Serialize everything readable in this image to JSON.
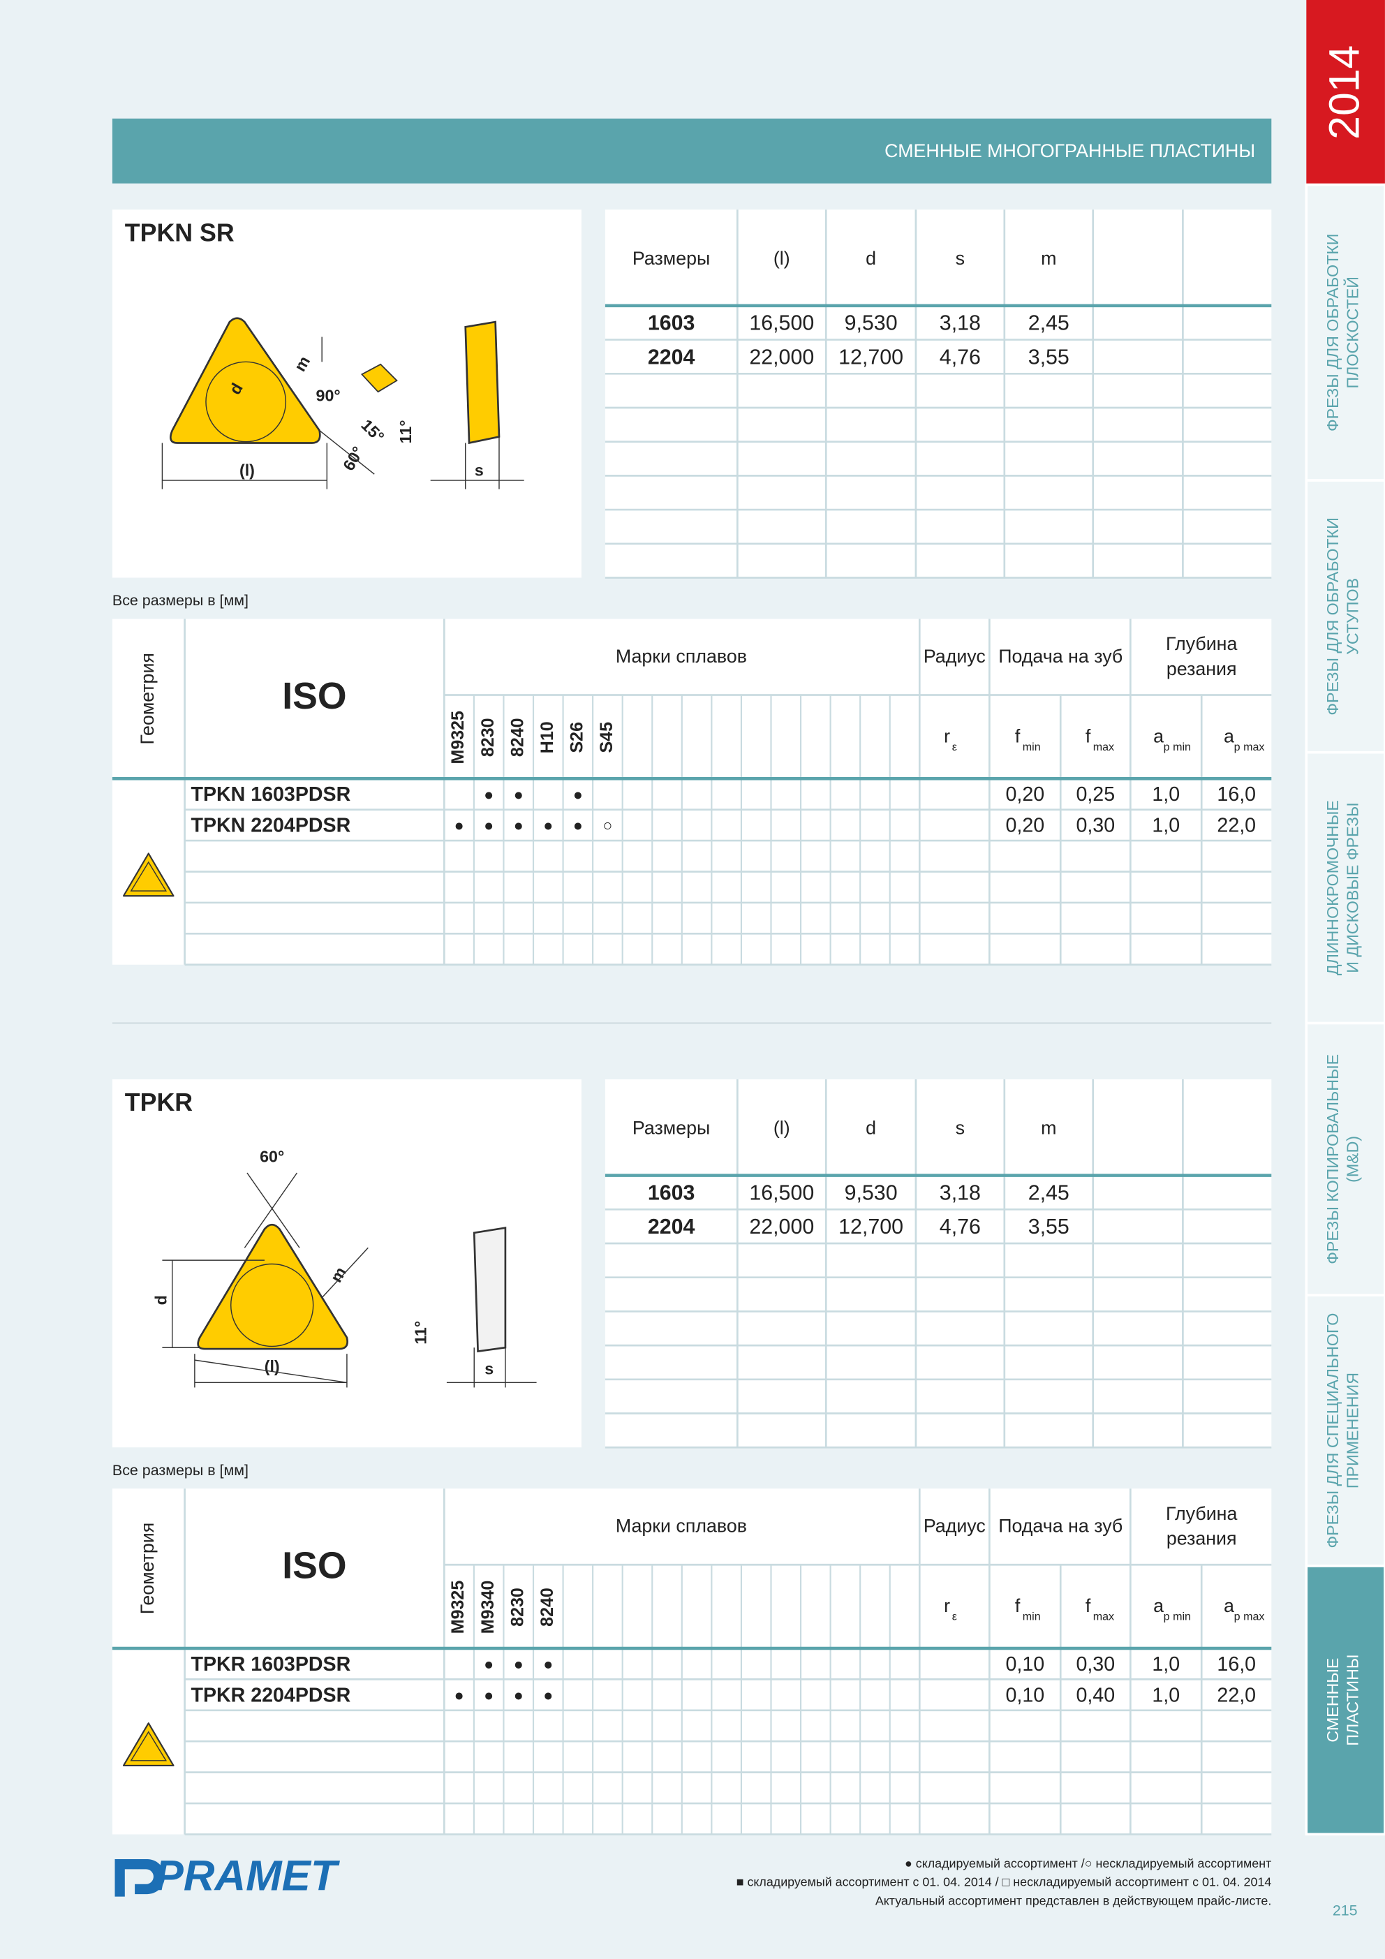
{
  "header": {
    "title": "СМЕННЫЕ МНОГОГРАННЫЕ ПЛАСТИНЫ",
    "year": "2014"
  },
  "sidebar": {
    "tabs": [
      {
        "lines": [
          "ФРЕЗЫ ДЛЯ ОБРАБОТКИ",
          "ПЛОСКОСТЕЙ"
        ]
      },
      {
        "lines": [
          "ФРЕЗЫ ДЛЯ ОБРАБОТКИ",
          "УСТУПОВ"
        ]
      },
      {
        "lines": [
          "ДЛИННОКРОМОЧНЫЕ",
          "И ДИСКОВЫЕ ФРЕЗЫ"
        ]
      },
      {
        "lines": [
          "ФРЕЗЫ КОПИРОВАЛЬНЫЕ",
          "(M&D)"
        ]
      },
      {
        "lines": [
          "ФРЕЗЫ ДЛЯ СПЕЦИАЛЬНОГО",
          "ПРИМЕНЕНИЯ"
        ]
      },
      {
        "lines": [
          "СМЕННЫЕ",
          "ПЛАСТИНЫ"
        ]
      }
    ]
  },
  "sections": [
    {
      "name": "TPKN SR",
      "diagram_labels": [
        "d",
        "m",
        "90°",
        "15°",
        "60°",
        "11°",
        "(l)",
        "s"
      ],
      "dimensions": {
        "headers": [
          "Размеры",
          "(l)",
          "d",
          "s",
          "m"
        ],
        "rows": [
          [
            "1603",
            "16,500",
            "9,530",
            "3,18",
            "2,45"
          ],
          [
            "2204",
            "22,000",
            "12,700",
            "4,76",
            "3,55"
          ]
        ]
      },
      "note": "Все размеры в [мм]",
      "grades_table": {
        "geometry_label": "Геометрия",
        "iso_label": "ISO",
        "grades_label": "Марки сплавов",
        "radius_label": "Радиус",
        "feed_label": "Подача на зуб",
        "depth_label": [
          "Глубина",
          "резания"
        ],
        "params": [
          {
            "symbol": "r",
            "sub": "ε"
          },
          {
            "symbol": "f",
            "sub": "min"
          },
          {
            "symbol": "f",
            "sub": "max"
          },
          {
            "symbol": "a",
            "sub": "p min"
          },
          {
            "symbol": "a",
            "sub": "p max"
          }
        ],
        "grades": [
          "M9325",
          "8230",
          "8240",
          "H10",
          "S26",
          "S45"
        ],
        "rows": [
          {
            "iso": "TPKN 1603PDSR",
            "marks": [
              null,
              "●",
              "●",
              null,
              "●",
              null
            ],
            "values": [
              "0,20",
              "0,25",
              "1,0",
              "16,0"
            ]
          },
          {
            "iso": "TPKN 2204PDSR",
            "marks": [
              "●",
              "●",
              "●",
              "●",
              "●",
              "○"
            ],
            "values": [
              "0,20",
              "0,30",
              "1,0",
              "22,0"
            ]
          }
        ]
      }
    },
    {
      "name": "TPKR",
      "diagram_labels": [
        "60°",
        "d",
        "m",
        "11°",
        "(l)",
        "s"
      ],
      "dimensions": {
        "headers": [
          "Размеры",
          "(l)",
          "d",
          "s",
          "m"
        ],
        "rows": [
          [
            "1603",
            "16,500",
            "9,530",
            "3,18",
            "2,45"
          ],
          [
            "2204",
            "22,000",
            "12,700",
            "4,76",
            "3,55"
          ]
        ]
      },
      "note": "Все размеры в [мм]",
      "grades_table": {
        "geometry_label": "Геометрия",
        "iso_label": "ISO",
        "grades_label": "Марки сплавов",
        "radius_label": "Радиус",
        "feed_label": "Подача на зуб",
        "depth_label": [
          "Глубина",
          "резания"
        ],
        "params": [
          {
            "symbol": "r",
            "sub": "ε"
          },
          {
            "symbol": "f",
            "sub": "min"
          },
          {
            "symbol": "f",
            "sub": "max"
          },
          {
            "symbol": "a",
            "sub": "p min"
          },
          {
            "symbol": "a",
            "sub": "p max"
          }
        ],
        "grades": [
          "M9325",
          "M9340",
          "8230",
          "8240"
        ],
        "rows": [
          {
            "iso": "TPKR 1603PDSR",
            "marks": [
              null,
              "●",
              "●",
              "●"
            ],
            "values": [
              "0,10",
              "0,30",
              "1,0",
              "16,0"
            ]
          },
          {
            "iso": "TPKR 2204PDSR",
            "marks": [
              "●",
              "●",
              "●",
              "●"
            ],
            "values": [
              "0,10",
              "0,40",
              "1,0",
              "22,0"
            ]
          }
        ]
      }
    }
  ],
  "footer": {
    "logo": "PRAMET",
    "legend": [
      "● складируемый ассортимент /○ нескладируемый ассортимент",
      "■  складируемый ассортимент с 01. 04. 2014 / □ нескладируемый ассортимент с 01. 04. 2014",
      "Актуальный ассортимент представлен в действующем прайс-листе."
    ],
    "page_number": "215"
  }
}
